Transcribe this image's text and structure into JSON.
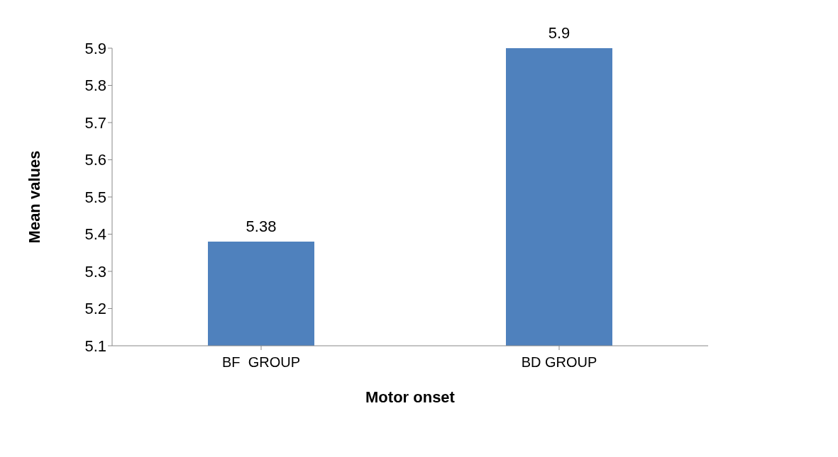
{
  "chart_data": {
    "type": "bar",
    "xlabel": "Motor onset",
    "ylabel": "Mean values",
    "categories": [
      "BF  GROUP",
      "BD GROUP"
    ],
    "values": [
      5.38,
      5.9
    ],
    "color": "#4f81bd",
    "ylim": [
      5.1,
      5.9
    ],
    "yticks": [
      5.1,
      5.2,
      5.3,
      5.4,
      5.5,
      5.6,
      5.7,
      5.8,
      5.9
    ],
    "data_labels": true,
    "grid": false,
    "legend": false
  }
}
